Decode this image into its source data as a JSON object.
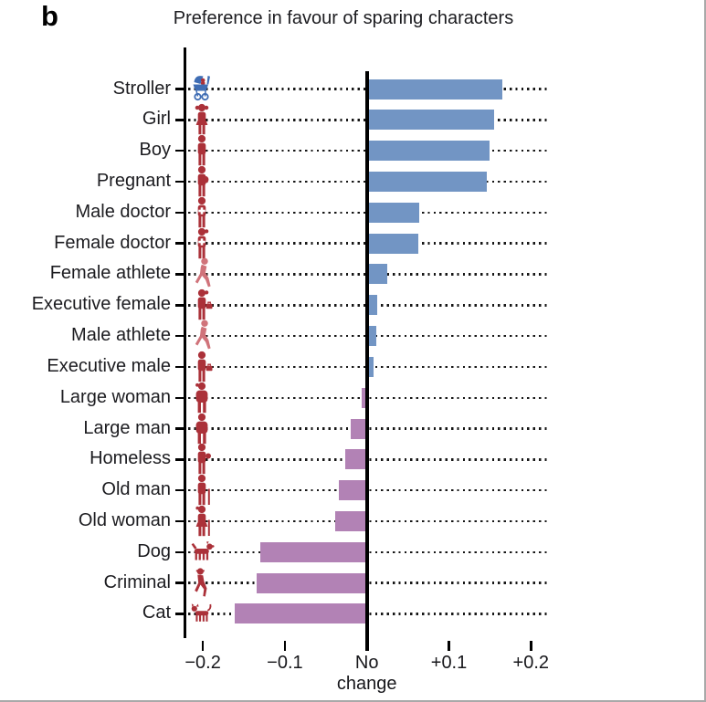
{
  "panel_label": "b",
  "title": "Preference in favour of sparing characters",
  "chart_data": {
    "type": "bar",
    "orientation": "horizontal",
    "title": "Preference in favour of sparing characters",
    "xlabel": "",
    "ylabel": "",
    "xlim": [
      -0.22,
      0.24
    ],
    "grid": "dotted-row-leaders",
    "legend": null,
    "zero_label": "No change",
    "x_ticks": [
      {
        "value": -0.2,
        "label": "−0.2"
      },
      {
        "value": -0.1,
        "label": "−0.1"
      },
      {
        "value": 0,
        "label": "No change"
      },
      {
        "value": 0.1,
        "label": "+0.1"
      },
      {
        "value": 0.2,
        "label": "+0.2"
      }
    ],
    "rows": [
      {
        "label": "Stroller",
        "value": 0.163,
        "icon": "stroller-icon"
      },
      {
        "label": "Girl",
        "value": 0.153,
        "icon": "girl-icon"
      },
      {
        "label": "Boy",
        "value": 0.148,
        "icon": "boy-icon"
      },
      {
        "label": "Pregnant",
        "value": 0.144,
        "icon": "pregnant-woman-icon"
      },
      {
        "label": "Male doctor",
        "value": 0.062,
        "icon": "male-doctor-icon"
      },
      {
        "label": "Female doctor",
        "value": 0.061,
        "icon": "female-doctor-icon"
      },
      {
        "label": "Female athlete",
        "value": 0.023,
        "icon": "female-athlete-icon"
      },
      {
        "label": "Executive female",
        "value": 0.011,
        "icon": "executive-female-icon"
      },
      {
        "label": "Male athlete",
        "value": 0.01,
        "icon": "male-athlete-icon"
      },
      {
        "label": "Executive male",
        "value": 0.006,
        "icon": "executive-male-icon"
      },
      {
        "label": "Large woman",
        "value": -0.005,
        "icon": "large-woman-icon"
      },
      {
        "label": "Large man",
        "value": -0.018,
        "icon": "large-man-icon"
      },
      {
        "label": "Homeless",
        "value": -0.024,
        "icon": "homeless-icon"
      },
      {
        "label": "Old man",
        "value": -0.032,
        "icon": "old-man-icon"
      },
      {
        "label": "Old woman",
        "value": -0.037,
        "icon": "old-woman-icon"
      },
      {
        "label": "Dog",
        "value": -0.128,
        "icon": "dog-icon"
      },
      {
        "label": "Criminal",
        "value": -0.133,
        "icon": "criminal-icon"
      },
      {
        "label": "Cat",
        "value": -0.159,
        "icon": "cat-icon"
      }
    ],
    "colors": {
      "positive_bar": "#7295c4",
      "negative_bar": "#b282b5",
      "icon_red": "#ab3139",
      "icon_light_red": "#d0737a",
      "icon_blue": "#3f6db4",
      "axis": "#000000",
      "frame_border": "#a9a9a9"
    }
  }
}
